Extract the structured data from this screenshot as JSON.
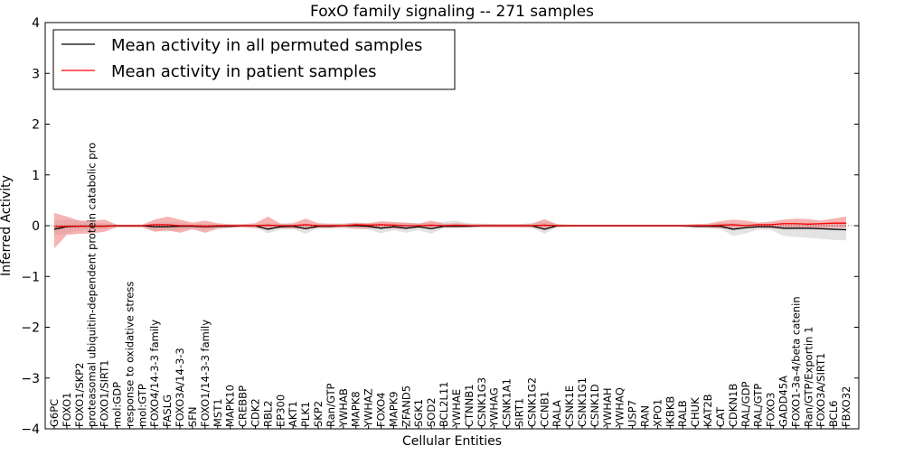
{
  "chart_data": {
    "type": "line",
    "title": "FoxO family signaling -- 271 samples",
    "xlabel": "Cellular Entities",
    "ylabel": "Inferred Activity",
    "ylim": [
      -4,
      4
    ],
    "yticks": [
      -4,
      -3,
      -2,
      -1,
      0,
      1,
      2,
      3,
      4
    ],
    "ytick_labels": [
      "−4",
      "−3",
      "−2",
      "−1",
      "0",
      "1",
      "2",
      "3",
      "4"
    ],
    "grid": false,
    "legend_position": "top-left",
    "categories": [
      "G6PC",
      "FOXO1",
      "FOXO1/SKP2",
      "proteasomal ubiquitin-dependent protein catabolic pro",
      "FOXO1/SIRT1",
      "mol:GDP",
      "response to oxidative stress",
      "mol:GTP",
      "FOXO4/14-3-3 family",
      "FASLG",
      "FOXO3A/14-3-3",
      "SFN",
      "FOXO1/14-3-3 family",
      "MST1",
      "MAPK10",
      "CREBBP",
      "CDK2",
      "RBL2",
      "EP300",
      "AKT1",
      "PLK1",
      "SKP2",
      "Ran/GTP",
      "YWHAB",
      "MAPK8",
      "YWHAZ",
      "FOXO4",
      "MAPK9",
      "ZFAND5",
      "SGK1",
      "SOD2",
      "BCL2L11",
      "YWHAE",
      "CTNNB1",
      "CSNK1G3",
      "YWHAG",
      "CSNK1A1",
      "SIRT1",
      "CSNK1G2",
      "CCNB1",
      "RALA",
      "CSNK1E",
      "CSNK1G1",
      "CSNK1D",
      "YWHAH",
      "YWHAQ",
      "USP7",
      "RAN",
      "XPO1",
      "IKBKB",
      "RALB",
      "CHUK",
      "KAT2B",
      "CAT",
      "CDKN1B",
      "RAL/GDP",
      "RAL/GTP",
      "FOXO3",
      "GADD45A",
      "FOXO1-3a-4/beta catenin",
      "Ran/GTP/Exportin 1",
      "FOXO3A/SIRT1",
      "BCL6",
      "FBXO32"
    ],
    "series": [
      {
        "name": "Mean activity in all permuted samples",
        "color": "#000000",
        "band_color": "#cccccc",
        "values": [
          -0.07,
          -0.02,
          -0.01,
          -0.01,
          -0.01,
          0.0,
          0.0,
          0.0,
          -0.02,
          -0.02,
          -0.01,
          -0.01,
          -0.02,
          -0.01,
          -0.01,
          0.0,
          0.0,
          -0.07,
          -0.02,
          -0.01,
          -0.06,
          -0.01,
          -0.01,
          0.0,
          0.0,
          -0.01,
          -0.05,
          -0.02,
          -0.05,
          -0.02,
          -0.06,
          -0.01,
          -0.01,
          -0.01,
          0.0,
          0.0,
          0.0,
          0.0,
          0.0,
          -0.07,
          0.0,
          0.0,
          0.0,
          0.0,
          0.0,
          0.0,
          0.0,
          0.0,
          0.0,
          0.0,
          0.0,
          -0.01,
          -0.01,
          -0.01,
          -0.07,
          -0.04,
          -0.02,
          -0.02,
          -0.05,
          -0.05,
          -0.05,
          -0.06,
          -0.07,
          -0.08
        ],
        "upper": [
          0.1,
          0.12,
          0.1,
          0.05,
          0.05,
          0.02,
          0.02,
          0.02,
          0.05,
          0.07,
          0.06,
          0.03,
          0.04,
          0.02,
          0.02,
          0.02,
          0.02,
          0.05,
          0.04,
          0.03,
          0.05,
          0.03,
          0.03,
          0.03,
          0.05,
          0.05,
          0.06,
          0.06,
          0.06,
          0.05,
          0.06,
          0.08,
          0.1,
          0.05,
          0.04,
          0.03,
          0.03,
          0.03,
          0.05,
          0.08,
          0.03,
          0.02,
          0.02,
          0.02,
          0.02,
          0.02,
          0.02,
          0.02,
          0.02,
          0.02,
          0.02,
          0.03,
          0.03,
          0.05,
          0.05,
          0.04,
          0.03,
          0.04,
          0.05,
          0.06,
          0.06,
          0.05,
          0.06,
          0.07
        ],
        "lower": [
          -0.2,
          -0.15,
          -0.1,
          -0.07,
          -0.07,
          -0.03,
          -0.03,
          -0.03,
          -0.1,
          -0.12,
          -0.08,
          -0.05,
          -0.08,
          -0.05,
          -0.04,
          -0.03,
          -0.04,
          -0.15,
          -0.08,
          -0.06,
          -0.16,
          -0.05,
          -0.05,
          -0.04,
          -0.06,
          -0.07,
          -0.15,
          -0.09,
          -0.14,
          -0.09,
          -0.16,
          -0.05,
          -0.05,
          -0.04,
          -0.03,
          -0.03,
          -0.03,
          -0.03,
          -0.04,
          -0.16,
          -0.03,
          -0.03,
          -0.03,
          -0.03,
          -0.03,
          -0.03,
          -0.03,
          -0.03,
          -0.03,
          -0.03,
          -0.03,
          -0.05,
          -0.05,
          -0.06,
          -0.2,
          -0.15,
          -0.08,
          -0.08,
          -0.2,
          -0.22,
          -0.24,
          -0.26,
          -0.28,
          -0.29
        ]
      },
      {
        "name": "Mean activity in patient samples",
        "color": "#ff0000",
        "band_color": "#f08080",
        "values": [
          -0.02,
          -0.01,
          -0.01,
          -0.01,
          -0.01,
          0.0,
          0.0,
          0.0,
          0.02,
          0.02,
          0.0,
          0.0,
          -0.01,
          0.0,
          0.0,
          0.0,
          0.0,
          0.01,
          0.0,
          0.0,
          0.02,
          0.0,
          0.0,
          0.0,
          0.02,
          0.01,
          0.02,
          0.01,
          0.0,
          0.0,
          0.01,
          0.0,
          0.01,
          0.0,
          0.0,
          0.0,
          0.0,
          0.0,
          0.0,
          0.01,
          0.0,
          0.0,
          0.0,
          0.0,
          0.0,
          0.0,
          0.0,
          0.0,
          0.0,
          0.0,
          0.0,
          0.0,
          0.0,
          0.01,
          0.02,
          0.0,
          0.02,
          0.02,
          0.04,
          0.04,
          0.03,
          0.04,
          0.05,
          0.05
        ],
        "upper": [
          0.25,
          0.18,
          0.1,
          0.1,
          0.12,
          0.02,
          0.02,
          0.02,
          0.12,
          0.18,
          0.12,
          0.06,
          0.1,
          0.05,
          0.03,
          0.03,
          0.05,
          0.18,
          0.04,
          0.05,
          0.14,
          0.05,
          0.04,
          0.04,
          0.06,
          0.05,
          0.09,
          0.07,
          0.06,
          0.04,
          0.1,
          0.04,
          0.05,
          0.03,
          0.03,
          0.03,
          0.03,
          0.03,
          0.04,
          0.13,
          0.03,
          0.02,
          0.02,
          0.02,
          0.02,
          0.02,
          0.02,
          0.02,
          0.02,
          0.02,
          0.02,
          0.03,
          0.04,
          0.09,
          0.12,
          0.1,
          0.06,
          0.08,
          0.12,
          0.14,
          0.13,
          0.1,
          0.14,
          0.18
        ],
        "lower": [
          -0.45,
          -0.18,
          -0.16,
          -0.15,
          -0.12,
          -0.03,
          -0.03,
          -0.03,
          -0.12,
          -0.09,
          -0.14,
          -0.07,
          -0.14,
          -0.06,
          -0.04,
          -0.03,
          -0.05,
          -0.06,
          -0.05,
          -0.06,
          -0.05,
          -0.05,
          -0.05,
          -0.04,
          -0.06,
          -0.06,
          -0.05,
          -0.06,
          -0.06,
          -0.04,
          -0.05,
          -0.04,
          -0.04,
          -0.03,
          -0.03,
          -0.03,
          -0.03,
          -0.03,
          -0.04,
          -0.06,
          -0.03,
          -0.02,
          -0.02,
          -0.02,
          -0.02,
          -0.02,
          -0.02,
          -0.02,
          -0.02,
          -0.02,
          -0.02,
          -0.03,
          -0.04,
          -0.06,
          -0.05,
          -0.05,
          -0.04,
          -0.05,
          -0.06,
          -0.06,
          -0.05,
          -0.05,
          -0.04,
          -0.04
        ]
      }
    ]
  }
}
